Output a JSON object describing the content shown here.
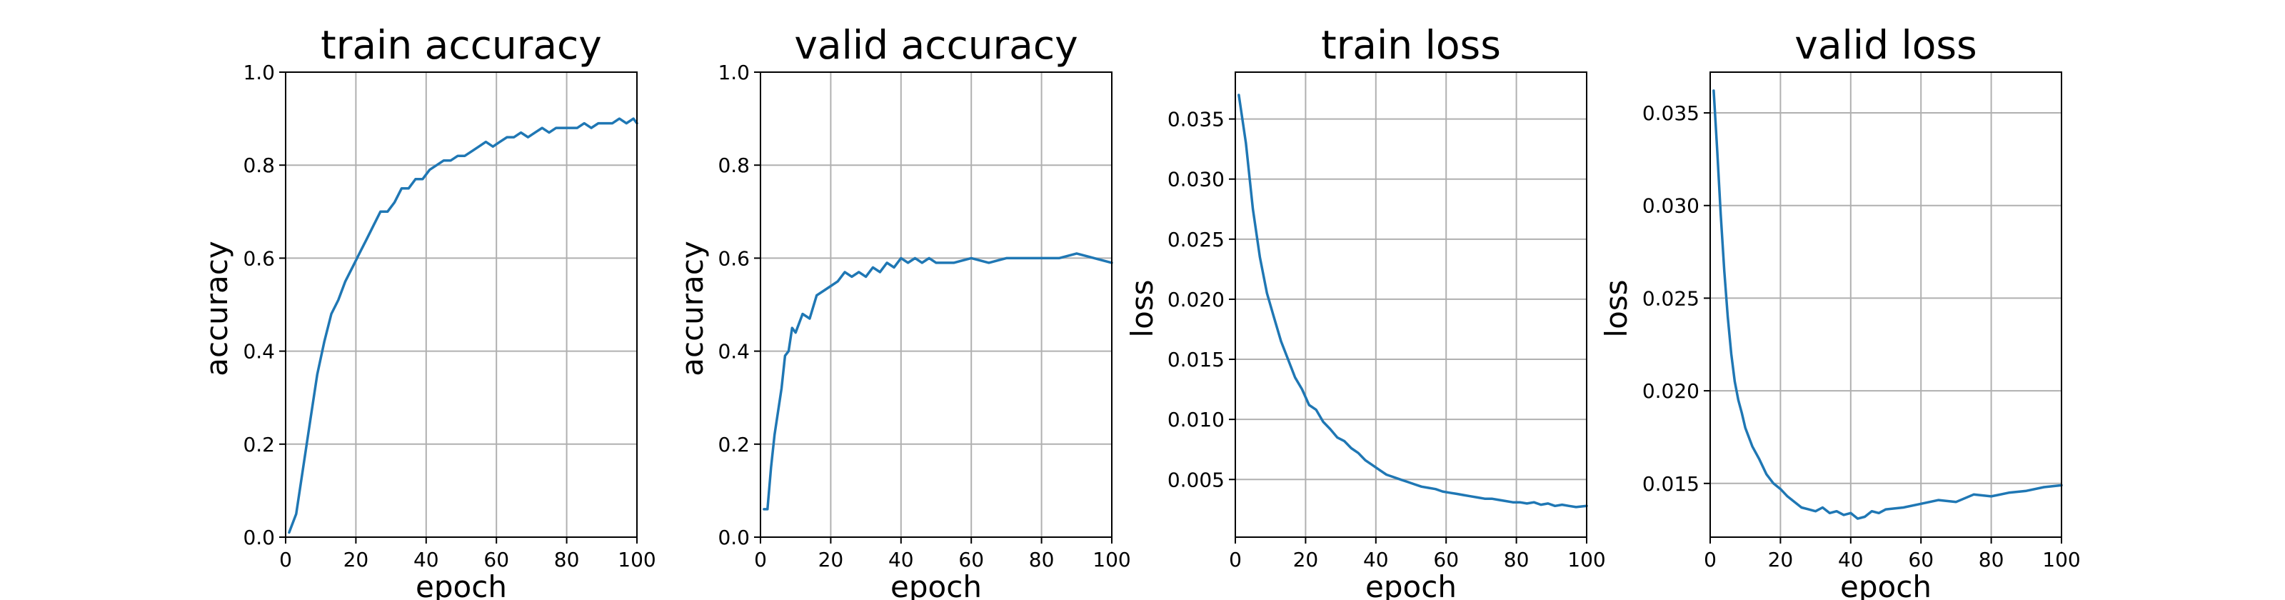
{
  "chart_data": [
    {
      "type": "line",
      "title": "train accuracy",
      "xlabel": "epoch",
      "ylabel": "accuracy",
      "xlim": [
        0,
        100
      ],
      "ylim": [
        0,
        1.0
      ],
      "xticks": [
        0,
        20,
        40,
        60,
        80,
        100
      ],
      "yticks": [
        0.0,
        0.2,
        0.4,
        0.6,
        0.8,
        1.0
      ],
      "ytick_labels": [
        "0.0",
        "0.2",
        "0.4",
        "0.6",
        "0.8",
        "1.0"
      ],
      "grid": true,
      "series_color": "#1f77b4",
      "series": [
        {
          "x": [
            1,
            3,
            5,
            7,
            9,
            11,
            13,
            15,
            17,
            19,
            21,
            23,
            25,
            27,
            29,
            31,
            33,
            35,
            37,
            39,
            41,
            43,
            45,
            47,
            49,
            51,
            53,
            55,
            57,
            59,
            61,
            63,
            65,
            67,
            69,
            71,
            73,
            75,
            77,
            79,
            81,
            83,
            85,
            87,
            89,
            91,
            93,
            95,
            97,
            99,
            100
          ],
          "y": [
            0.01,
            0.05,
            0.15,
            0.25,
            0.35,
            0.42,
            0.48,
            0.51,
            0.55,
            0.58,
            0.61,
            0.64,
            0.67,
            0.7,
            0.7,
            0.72,
            0.75,
            0.75,
            0.77,
            0.77,
            0.79,
            0.8,
            0.81,
            0.81,
            0.82,
            0.82,
            0.83,
            0.84,
            0.85,
            0.84,
            0.85,
            0.86,
            0.86,
            0.87,
            0.86,
            0.87,
            0.88,
            0.87,
            0.88,
            0.88,
            0.88,
            0.88,
            0.89,
            0.88,
            0.89,
            0.89,
            0.89,
            0.9,
            0.89,
            0.9,
            0.89
          ]
        }
      ]
    },
    {
      "type": "line",
      "title": "valid accuracy",
      "xlabel": "epoch",
      "ylabel": "accuracy",
      "xlim": [
        0,
        100
      ],
      "ylim": [
        0,
        1.0
      ],
      "xticks": [
        0,
        20,
        40,
        60,
        80,
        100
      ],
      "yticks": [
        0.0,
        0.2,
        0.4,
        0.6,
        0.8,
        1.0
      ],
      "ytick_labels": [
        "0.0",
        "0.2",
        "0.4",
        "0.6",
        "0.8",
        "1.0"
      ],
      "grid": true,
      "series_color": "#1f77b4",
      "series": [
        {
          "x": [
            1,
            2,
            3,
            4,
            5,
            6,
            7,
            8,
            9,
            10,
            12,
            14,
            16,
            18,
            20,
            22,
            24,
            26,
            28,
            30,
            32,
            34,
            36,
            38,
            40,
            42,
            44,
            46,
            48,
            50,
            55,
            60,
            65,
            70,
            75,
            80,
            85,
            90,
            95,
            100
          ],
          "y": [
            0.06,
            0.06,
            0.15,
            0.22,
            0.27,
            0.32,
            0.39,
            0.4,
            0.45,
            0.44,
            0.48,
            0.47,
            0.52,
            0.53,
            0.54,
            0.55,
            0.57,
            0.56,
            0.57,
            0.56,
            0.58,
            0.57,
            0.59,
            0.58,
            0.6,
            0.59,
            0.6,
            0.59,
            0.6,
            0.59,
            0.59,
            0.6,
            0.59,
            0.6,
            0.6,
            0.6,
            0.6,
            0.61,
            0.6,
            0.59
          ]
        }
      ]
    },
    {
      "type": "line",
      "title": "train loss",
      "xlabel": "epoch",
      "ylabel": "loss",
      "xlim": [
        0,
        100
      ],
      "ylim": [
        0.0002,
        0.0389
      ],
      "xticks": [
        0,
        20,
        40,
        60,
        80,
        100
      ],
      "yticks": [
        0.005,
        0.01,
        0.015,
        0.02,
        0.025,
        0.03,
        0.035
      ],
      "ytick_labels": [
        "0.005",
        "0.010",
        "0.015",
        "0.020",
        "0.025",
        "0.030",
        "0.035"
      ],
      "grid": true,
      "series_color": "#1f77b4",
      "series": [
        {
          "x": [
            1,
            3,
            5,
            7,
            9,
            11,
            13,
            15,
            17,
            19,
            21,
            23,
            25,
            27,
            29,
            31,
            33,
            35,
            37,
            39,
            41,
            43,
            45,
            47,
            49,
            51,
            53,
            55,
            57,
            59,
            61,
            63,
            65,
            67,
            69,
            71,
            73,
            75,
            77,
            79,
            81,
            83,
            85,
            87,
            89,
            91,
            93,
            95,
            97,
            100
          ],
          "y": [
            0.037,
            0.033,
            0.0275,
            0.0235,
            0.0205,
            0.0185,
            0.0165,
            0.015,
            0.0135,
            0.0125,
            0.0112,
            0.0108,
            0.0098,
            0.0092,
            0.0085,
            0.0082,
            0.0076,
            0.0072,
            0.0066,
            0.0062,
            0.0058,
            0.0054,
            0.0052,
            0.005,
            0.0048,
            0.0046,
            0.0044,
            0.0043,
            0.0042,
            0.004,
            0.0039,
            0.0038,
            0.0037,
            0.0036,
            0.0035,
            0.0034,
            0.0034,
            0.0033,
            0.0032,
            0.0031,
            0.0031,
            0.003,
            0.0031,
            0.0029,
            0.003,
            0.0028,
            0.0029,
            0.0028,
            0.0027,
            0.0028
          ]
        }
      ]
    },
    {
      "type": "line",
      "title": "valid loss",
      "xlabel": "epoch",
      "ylabel": "loss",
      "xlim": [
        0,
        100
      ],
      "ylim": [
        0.0121,
        0.0372
      ],
      "xticks": [
        0,
        20,
        40,
        60,
        80,
        100
      ],
      "yticks": [
        0.015,
        0.02,
        0.025,
        0.03,
        0.035
      ],
      "ytick_labels": [
        "0.015",
        "0.020",
        "0.025",
        "0.030",
        "0.035"
      ],
      "grid": true,
      "series_color": "#1f77b4",
      "series": [
        {
          "x": [
            1,
            2,
            3,
            4,
            5,
            6,
            7,
            8,
            9,
            10,
            12,
            14,
            16,
            18,
            20,
            22,
            24,
            26,
            28,
            30,
            32,
            34,
            36,
            38,
            40,
            42,
            44,
            46,
            48,
            50,
            55,
            60,
            65,
            70,
            75,
            80,
            85,
            90,
            95,
            100
          ],
          "y": [
            0.0362,
            0.033,
            0.0295,
            0.0265,
            0.024,
            0.022,
            0.0205,
            0.0195,
            0.0188,
            0.018,
            0.017,
            0.0163,
            0.0155,
            0.015,
            0.0147,
            0.0143,
            0.014,
            0.0137,
            0.0136,
            0.0135,
            0.0137,
            0.0134,
            0.0135,
            0.0133,
            0.0134,
            0.0131,
            0.0132,
            0.0135,
            0.0134,
            0.0136,
            0.0137,
            0.0139,
            0.0141,
            0.014,
            0.0144,
            0.0143,
            0.0145,
            0.0146,
            0.0148,
            0.0149
          ]
        }
      ]
    }
  ]
}
